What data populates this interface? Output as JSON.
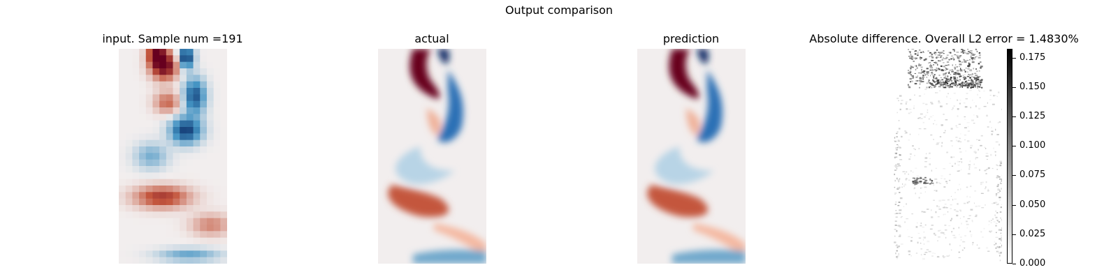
{
  "chart_data": {
    "type": "heatmap",
    "title": "Output comparison",
    "panels": [
      {
        "name": "input",
        "title": "input. Sample num =191",
        "colormap": "RdBu_r (diverging, red-white-blue)"
      },
      {
        "name": "actual",
        "title": "actual",
        "colormap": "RdBu_r (diverging, red-white-blue)"
      },
      {
        "name": "prediction",
        "title": "prediction",
        "colormap": "RdBu_r (diverging, red-white-blue)"
      },
      {
        "name": "difference",
        "title": "Absolute difference. Overall L2 error = 1.4830%",
        "colormap": "Greys (white-black)"
      }
    ],
    "colorbar": {
      "range": [
        0.0,
        0.1825
      ],
      "ticks": [
        "0.000",
        "0.025",
        "0.050",
        "0.075",
        "0.100",
        "0.125",
        "0.150",
        "0.175"
      ]
    },
    "grid": false
  },
  "colors": {
    "red_dark": "#67001f",
    "red": "#c4573e",
    "blue_dark": "#0b2b66",
    "blue": "#2b6fb5",
    "neutral": "#f2eeee"
  }
}
